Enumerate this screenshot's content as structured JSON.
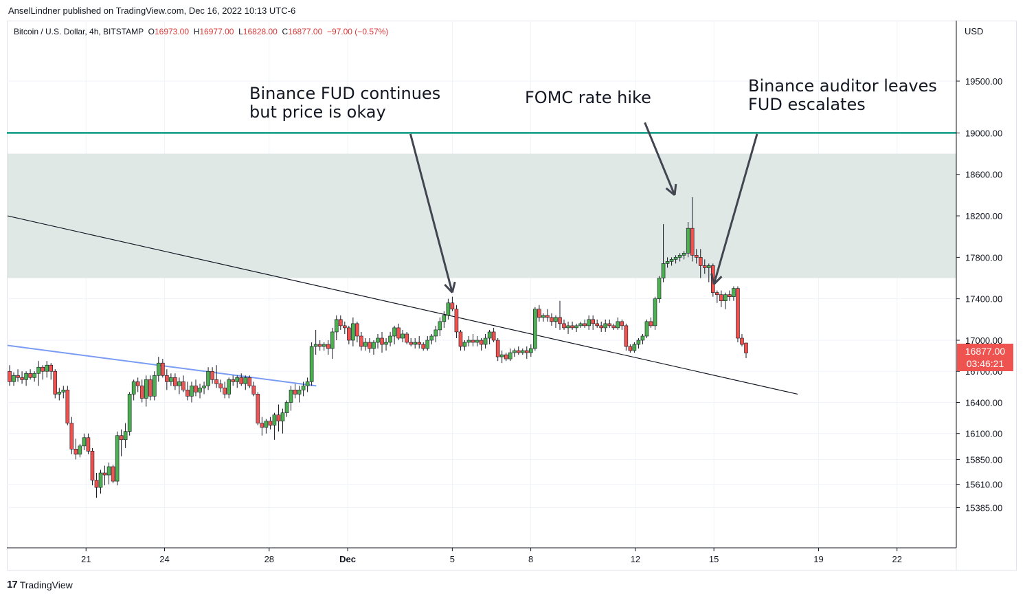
{
  "header": {
    "publisher": "AnselLindner published on TradingView.com, Dec 16, 2022 10:13 UTC-6"
  },
  "legend": {
    "symbol": "Bitcoin / U.S. Dollar, 4h, BITSTAMP",
    "o_label": "O",
    "o": "16973.00",
    "h_label": "H",
    "h": "16977.00",
    "l_label": "L",
    "l": "16828.00",
    "c_label": "C",
    "c": "16877.00",
    "change": "−97.00 (−0.57%)"
  },
  "price_axis": {
    "currency": "USD"
  },
  "price_badge": {
    "price": "16877.00",
    "countdown": "03:46:21"
  },
  "footer": {
    "brand": "TradingView"
  },
  "colors": {
    "up": "#4caf50",
    "down": "#ef5350",
    "wick": "#131722",
    "resistance_line": "#089981",
    "zone": "#dfe8e5",
    "blue_trendline": "#7b9cf5",
    "black_trendline": "#131722",
    "badge": "#ef5350"
  },
  "chart_data": {
    "type": "candlestick",
    "timeframe": "4h",
    "ylim": [
      15200,
      20100
    ],
    "y_ticks": [
      "19500.00",
      "19000.00",
      "18600.00",
      "18200.00",
      "17800.00",
      "17400.00",
      "17000.00",
      "16700.00",
      "16400.00",
      "16100.00",
      "15850.00",
      "15610.00",
      "15385.00"
    ],
    "x_ticks": [
      "21",
      "24",
      "28",
      "Dec",
      "5",
      "8",
      "12",
      "15",
      "19",
      "22"
    ],
    "resistance_level": 19000,
    "zone": [
      17600,
      18800
    ],
    "trendlines": [
      {
        "name": "black",
        "from": {
          "d": 18.0,
          "p": 18200
        },
        "to": {
          "d": 48.2,
          "p": 16480
        }
      },
      {
        "name": "blue",
        "from": {
          "d": 18.0,
          "p": 16950
        },
        "to": {
          "d": 29.8,
          "p": 16560
        }
      }
    ],
    "annotations": [
      {
        "text": [
          "Binance FUD continues",
          "but price is okay"
        ],
        "arrow_from": {
          "d": 33.4,
          "p": 18990
        },
        "arrow_to": {
          "d": 35.0,
          "p": 17460
        }
      },
      {
        "text": [
          "FOMC rate hike"
        ],
        "arrow_from": {
          "d": 42.36,
          "p": 19100
        },
        "arrow_to": {
          "d": 43.5,
          "p": 18400
        }
      },
      {
        "text": [
          "Binance auditor leaves",
          "FUD escalates"
        ],
        "arrow_from": {
          "d": 46.65,
          "p": 18990
        },
        "arrow_to": {
          "d": 45.0,
          "p": 17540
        }
      }
    ],
    "candles": [
      [
        16700,
        16760,
        16560,
        16600
      ],
      [
        16600,
        16690,
        16560,
        16660
      ],
      [
        16660,
        16720,
        16600,
        16640
      ],
      [
        16640,
        16700,
        16580,
        16620
      ],
      [
        16620,
        16700,
        16560,
        16680
      ],
      [
        16680,
        16720,
        16620,
        16640
      ],
      [
        16640,
        16700,
        16600,
        16680
      ],
      [
        16680,
        16800,
        16560,
        16740
      ],
      [
        16740,
        16760,
        16620,
        16700
      ],
      [
        16700,
        16800,
        16640,
        16760
      ],
      [
        16760,
        16780,
        16620,
        16700
      ],
      [
        16700,
        16720,
        16440,
        16480
      ],
      [
        16480,
        16540,
        16420,
        16500
      ],
      [
        16500,
        16560,
        16440,
        16520
      ],
      [
        16520,
        16560,
        16180,
        16200
      ],
      [
        16200,
        16260,
        15900,
        15950
      ],
      [
        15950,
        16050,
        15850,
        15900
      ],
      [
        15900,
        16000,
        15870,
        15980
      ],
      [
        15980,
        16100,
        15940,
        16060
      ],
      [
        16060,
        16100,
        15900,
        15930
      ],
      [
        15930,
        15960,
        15600,
        15650
      ],
      [
        15650,
        15720,
        15480,
        15580
      ],
      [
        15580,
        15750,
        15520,
        15720
      ],
      [
        15720,
        15790,
        15600,
        15700
      ],
      [
        15700,
        15820,
        15610,
        15780
      ],
      [
        15780,
        15800,
        15620,
        15640
      ],
      [
        15640,
        16120,
        15600,
        16080
      ],
      [
        16080,
        16140,
        15880,
        16040
      ],
      [
        16040,
        16200,
        15960,
        16120
      ],
      [
        16120,
        16500,
        16080,
        16480
      ],
      [
        16480,
        16620,
        16420,
        16600
      ],
      [
        16600,
        16640,
        16500,
        16560
      ],
      [
        16560,
        16620,
        16400,
        16440
      ],
      [
        16440,
        16660,
        16360,
        16620
      ],
      [
        16620,
        16660,
        16420,
        16460
      ],
      [
        16460,
        16700,
        16420,
        16660
      ],
      [
        16660,
        16840,
        16600,
        16780
      ],
      [
        16780,
        16820,
        16640,
        16660
      ],
      [
        16660,
        16720,
        16520,
        16600
      ],
      [
        16600,
        16680,
        16560,
        16640
      ],
      [
        16640,
        16680,
        16520,
        16560
      ],
      [
        16560,
        16640,
        16480,
        16600
      ],
      [
        16600,
        16660,
        16500,
        16520
      ],
      [
        16520,
        16600,
        16420,
        16460
      ],
      [
        16460,
        16600,
        16400,
        16560
      ],
      [
        16560,
        16620,
        16460,
        16500
      ],
      [
        16500,
        16580,
        16440,
        16540
      ],
      [
        16540,
        16600,
        16480,
        16560
      ],
      [
        16560,
        16740,
        16520,
        16700
      ],
      [
        16700,
        16740,
        16580,
        16620
      ],
      [
        16620,
        16760,
        16540,
        16580
      ],
      [
        16580,
        16620,
        16500,
        16540
      ],
      [
        16540,
        16600,
        16440,
        16480
      ],
      [
        16480,
        16640,
        16440,
        16620
      ],
      [
        16620,
        16660,
        16560,
        16600
      ],
      [
        16600,
        16660,
        16540,
        16640
      ],
      [
        16640,
        16680,
        16560,
        16580
      ],
      [
        16580,
        16660,
        16520,
        16640
      ],
      [
        16640,
        16660,
        16540,
        16560
      ],
      [
        16560,
        16600,
        16460,
        16480
      ],
      [
        16480,
        16500,
        16180,
        16200
      ],
      [
        16200,
        16260,
        16080,
        16160
      ],
      [
        16160,
        16240,
        16100,
        16220
      ],
      [
        16220,
        16260,
        16140,
        16180
      ],
      [
        16180,
        16300,
        16040,
        16280
      ],
      [
        16280,
        16380,
        16120,
        16220
      ],
      [
        16220,
        16340,
        16100,
        16300
      ],
      [
        16300,
        16420,
        16260,
        16400
      ],
      [
        16400,
        16560,
        16320,
        16520
      ],
      [
        16520,
        16580,
        16440,
        16480
      ],
      [
        16480,
        16560,
        16400,
        16520
      ],
      [
        16520,
        16600,
        16460,
        16560
      ],
      [
        16560,
        16640,
        16500,
        16600
      ],
      [
        16600,
        16980,
        16560,
        16940
      ],
      [
        16940,
        17100,
        16860,
        16960
      ],
      [
        16960,
        17000,
        16900,
        16940
      ],
      [
        16940,
        16980,
        16900,
        16960
      ],
      [
        16960,
        17000,
        16860,
        16920
      ],
      [
        16920,
        17120,
        16820,
        17080
      ],
      [
        17080,
        17240,
        17000,
        17200
      ],
      [
        17200,
        17240,
        17100,
        17140
      ],
      [
        17140,
        17180,
        17060,
        17120
      ],
      [
        17120,
        17140,
        16960,
        17000
      ],
      [
        17000,
        17220,
        16940,
        17160
      ],
      [
        17160,
        17180,
        16980,
        17040
      ],
      [
        17040,
        17080,
        16900,
        16940
      ],
      [
        16940,
        17020,
        16900,
        16980
      ],
      [
        16980,
        17020,
        16880,
        16920
      ],
      [
        16920,
        17000,
        16860,
        16980
      ],
      [
        16980,
        17060,
        16920,
        17020
      ],
      [
        17020,
        17080,
        16880,
        16960
      ],
      [
        16960,
        17020,
        16900,
        16980
      ],
      [
        16980,
        17080,
        16940,
        17040
      ],
      [
        17040,
        17140,
        16960,
        17120
      ],
      [
        17120,
        17160,
        17000,
        17020
      ],
      [
        17020,
        17100,
        16980,
        17060
      ],
      [
        17060,
        17080,
        16960,
        16980
      ],
      [
        16980,
        17020,
        16940,
        16960
      ],
      [
        16960,
        17020,
        16920,
        16980
      ],
      [
        16980,
        17040,
        16920,
        16960
      ],
      [
        16960,
        16980,
        16900,
        16920
      ],
      [
        16920,
        17040,
        16900,
        17000
      ],
      [
        17000,
        17060,
        16960,
        17040
      ],
      [
        17040,
        17140,
        16980,
        17100
      ],
      [
        17100,
        17220,
        17040,
        17180
      ],
      [
        17180,
        17280,
        17120,
        17240
      ],
      [
        17240,
        17400,
        17200,
        17360
      ],
      [
        17360,
        17420,
        17280,
        17300
      ],
      [
        17300,
        17340,
        17020,
        17080
      ],
      [
        17080,
        17100,
        16900,
        16940
      ],
      [
        16940,
        17000,
        16900,
        16980
      ],
      [
        16980,
        17040,
        16940,
        17000
      ],
      [
        17000,
        17060,
        16940,
        16980
      ],
      [
        16980,
        17040,
        16940,
        17000
      ],
      [
        17000,
        17020,
        16900,
        16960
      ],
      [
        16960,
        17060,
        16920,
        17020
      ],
      [
        17020,
        17100,
        16960,
        17080
      ],
      [
        17080,
        17120,
        16980,
        17000
      ],
      [
        17000,
        17020,
        16800,
        16840
      ],
      [
        16840,
        16900,
        16780,
        16860
      ],
      [
        16860,
        16880,
        16800,
        16820
      ],
      [
        16820,
        16920,
        16800,
        16880
      ],
      [
        16880,
        16920,
        16840,
        16900
      ],
      [
        16900,
        16940,
        16860,
        16880
      ],
      [
        16880,
        16920,
        16860,
        16900
      ],
      [
        16900,
        16940,
        16820,
        16880
      ],
      [
        16880,
        16960,
        16840,
        16920
      ],
      [
        16920,
        17320,
        16900,
        17300
      ],
      [
        17300,
        17340,
        17180,
        17220
      ],
      [
        17220,
        17260,
        17180,
        17240
      ],
      [
        17240,
        17300,
        17180,
        17220
      ],
      [
        17220,
        17260,
        17140,
        17180
      ],
      [
        17180,
        17240,
        17120,
        17220
      ],
      [
        17220,
        17380,
        17100,
        17160
      ],
      [
        17160,
        17200,
        17100,
        17120
      ],
      [
        17120,
        17180,
        17060,
        17140
      ],
      [
        17140,
        17180,
        17100,
        17120
      ],
      [
        17120,
        17160,
        17080,
        17140
      ],
      [
        17140,
        17180,
        17120,
        17160
      ],
      [
        17160,
        17200,
        17120,
        17140
      ],
      [
        17140,
        17240,
        17100,
        17200
      ],
      [
        17200,
        17240,
        17100,
        17160
      ],
      [
        17160,
        17200,
        17120,
        17140
      ],
      [
        17140,
        17180,
        17080,
        17120
      ],
      [
        17120,
        17200,
        17080,
        17160
      ],
      [
        17160,
        17200,
        17120,
        17140
      ],
      [
        17140,
        17160,
        17100,
        17120
      ],
      [
        17120,
        17220,
        17100,
        17180
      ],
      [
        17180,
        17200,
        17100,
        17140
      ],
      [
        17140,
        17160,
        16900,
        16940
      ],
      [
        16940,
        16960,
        16880,
        16900
      ],
      [
        16900,
        16980,
        16880,
        16960
      ],
      [
        16960,
        17020,
        16920,
        17000
      ],
      [
        17000,
        17060,
        16960,
        17040
      ],
      [
        17040,
        17200,
        17020,
        17180
      ],
      [
        17180,
        17220,
        17120,
        17140
      ],
      [
        17140,
        17420,
        17100,
        17400
      ],
      [
        17400,
        17620,
        17360,
        17600
      ],
      [
        17600,
        18120,
        17560,
        17740
      ],
      [
        17740,
        17800,
        17700,
        17760
      ],
      [
        17760,
        17800,
        17720,
        17780
      ],
      [
        17780,
        17820,
        17740,
        17800
      ],
      [
        17800,
        17840,
        17760,
        17820
      ],
      [
        17820,
        17860,
        17780,
        17840
      ],
      [
        17840,
        18140,
        17800,
        18080
      ],
      [
        18080,
        18380,
        17760,
        17820
      ],
      [
        17820,
        17880,
        17740,
        17800
      ],
      [
        17800,
        17880,
        17600,
        17720
      ],
      [
        17720,
        17780,
        17640,
        17700
      ],
      [
        17700,
        17740,
        17560,
        17720
      ],
      [
        17720,
        17740,
        17420,
        17460
      ],
      [
        17460,
        17480,
        17360,
        17440
      ],
      [
        17440,
        17480,
        17320,
        17380
      ],
      [
        17380,
        17460,
        17300,
        17440
      ],
      [
        17440,
        17480,
        17380,
        17420
      ],
      [
        17420,
        17520,
        17380,
        17500
      ],
      [
        17500,
        17520,
        16980,
        17020
      ],
      [
        17020,
        17060,
        16940,
        16960
      ],
      [
        16973,
        16977,
        16828,
        16877
      ]
    ]
  }
}
